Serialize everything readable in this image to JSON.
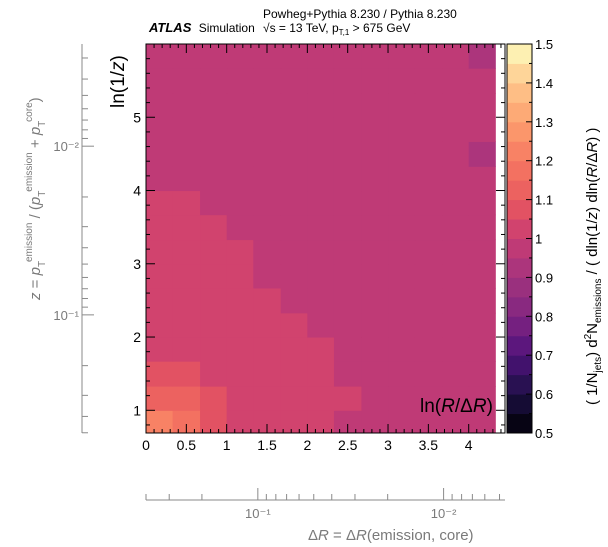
{
  "header": {
    "experiment": "ATLAS",
    "tag": "Simulation",
    "generators": "Powheg+Pythia 8.230 / Pythia 8.230",
    "energy": "√s = 13 TeV, p",
    "energy_sub": "T,1",
    "energy_cut": " > 675 GeV"
  },
  "chart_data": {
    "type": "heatmap",
    "xlabel": "ln(R/ΔR)",
    "ylabel": "ln(1/z)",
    "x_edges": [
      0,
      0.33,
      0.67,
      1.0,
      1.33,
      1.67,
      2.0,
      2.33,
      2.67,
      3.0,
      3.33,
      3.67,
      4.0,
      4.33
    ],
    "y_edges": [
      0.69,
      1.0,
      1.33,
      1.67,
      2.0,
      2.33,
      2.67,
      3.0,
      3.33,
      3.67,
      4.0,
      4.33,
      4.67,
      5.0,
      5.33,
      5.67,
      6.0
    ],
    "xlim": [
      0,
      4.45
    ],
    "ylim": [
      0.69,
      6.0
    ],
    "xticks": [
      "0",
      "0.5",
      "1",
      "1.5",
      "2",
      "2.5",
      "3",
      "3.5",
      "4"
    ],
    "xtick_values": [
      0,
      0.5,
      1,
      1.5,
      2,
      2.5,
      3,
      3.5,
      4
    ],
    "yticks": [
      "1",
      "2",
      "3",
      "4",
      "5"
    ],
    "ytick_values": [
      1,
      2,
      3,
      4,
      5
    ],
    "z_rows_bottom_to_top": [
      [
        1.2,
        1.15,
        1.07,
        1.03,
        1.01,
        1.0,
        1.0,
        0.99,
        0.99,
        0.97,
        0.95,
        0.95,
        0.95
      ],
      [
        1.13,
        1.12,
        1.07,
        1.02,
        1.02,
        1.01,
        1.0,
        1.0,
        0.99,
        0.98,
        0.95,
        0.95,
        0.95
      ],
      [
        1.05,
        1.05,
        1.03,
        1.02,
        1.01,
        1.0,
        1.0,
        0.98,
        0.96,
        0.95,
        0.95,
        0.95,
        0.95
      ],
      [
        1.04,
        1.04,
        1.03,
        1.02,
        1.01,
        1.0,
        1.0,
        0.98,
        0.95,
        0.95,
        0.95,
        0.95,
        0.95
      ],
      [
        1.04,
        1.04,
        1.03,
        1.02,
        1.01,
        1.0,
        0.98,
        0.95,
        0.95,
        0.95,
        0.95,
        0.95,
        0.95
      ],
      [
        1.04,
        1.04,
        1.03,
        1.02,
        1.01,
        0.98,
        0.95,
        0.95,
        0.95,
        0.95,
        0.95,
        0.95,
        0.95
      ],
      [
        1.04,
        1.04,
        1.03,
        1.02,
        0.98,
        0.95,
        0.95,
        0.95,
        0.95,
        0.95,
        0.95,
        0.95,
        0.95
      ],
      [
        1.03,
        1.03,
        1.02,
        1.0,
        0.97,
        0.95,
        0.95,
        0.95,
        0.95,
        0.95,
        0.95,
        0.95,
        0.95
      ],
      [
        1.02,
        1.02,
        1.0,
        0.97,
        0.95,
        0.95,
        0.95,
        0.95,
        0.95,
        0.95,
        0.95,
        0.95,
        0.95
      ],
      [
        1.0,
        1.0,
        0.98,
        0.95,
        0.95,
        0.95,
        0.95,
        0.95,
        0.95,
        0.95,
        0.95,
        0.95,
        0.95
      ],
      [
        0.98,
        0.98,
        0.95,
        0.95,
        0.95,
        0.95,
        0.95,
        0.95,
        0.95,
        0.95,
        0.95,
        0.95,
        0.95
      ],
      [
        0.96,
        0.96,
        0.95,
        0.95,
        0.95,
        0.95,
        0.95,
        0.95,
        0.95,
        0.95,
        0.95,
        0.95,
        0.95
      ],
      [
        0.96,
        0.96,
        0.95,
        0.95,
        0.95,
        0.95,
        0.95,
        0.95,
        0.95,
        0.95,
        0.95,
        0.95,
        0.95
      ],
      [
        0.96,
        0.96,
        0.95,
        0.95,
        0.95,
        0.95,
        0.95,
        0.95,
        0.95,
        0.95,
        0.95,
        0.95,
        0.95
      ],
      [
        0.96,
        0.96,
        0.95,
        0.95,
        0.95,
        0.95,
        0.95,
        0.95,
        0.95,
        0.95,
        0.95,
        0.95,
        0.95
      ],
      [
        0.96,
        0.96,
        0.95,
        0.95,
        0.95,
        0.95,
        0.95,
        0.95,
        0.95,
        0.95,
        0.95,
        0.95,
        0.95
      ]
    ],
    "outlier_cells": [
      {
        "x_bin": 12,
        "y_bin": 11,
        "value": 0.91
      },
      {
        "x_bin": 12,
        "y_bin": 15,
        "value": 0.92
      }
    ],
    "colorbar": {
      "label": "(1/N_jets) d²N_emissions / ( dln(1/z) dln(R/ΔR) )",
      "range": [
        0.5,
        1.5
      ],
      "step": 0.05,
      "ticks": [
        "0.5",
        "0.6",
        "0.7",
        "0.8",
        "0.9",
        "1",
        "1.1",
        "1.2",
        "1.3",
        "1.4",
        "1.5"
      ],
      "tick_values": [
        0.5,
        0.6,
        0.7,
        0.8,
        0.9,
        1.0,
        1.1,
        1.2,
        1.3,
        1.4,
        1.5
      ]
    },
    "secondary_y": {
      "label": "z = p_T^emission / (p_T^emission + p_T^core)",
      "ticks": [
        "10⁻²",
        "10⁻¹"
      ],
      "tick_values": [
        0.01,
        0.1
      ]
    },
    "secondary_x": {
      "label": "ΔR = ΔR(emission, core)",
      "ticks": [
        "10⁻¹",
        "10⁻²"
      ],
      "tick_values": [
        0.1,
        0.01
      ]
    }
  }
}
